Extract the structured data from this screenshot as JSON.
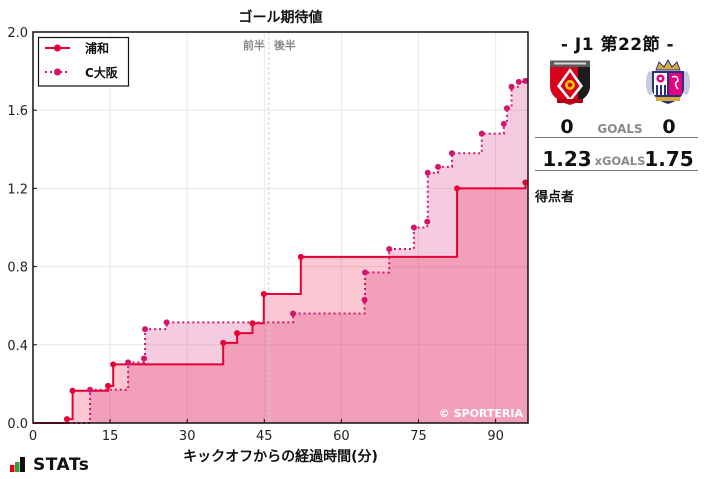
{
  "chart": {
    "title": "ゴール期待値",
    "xlabel": "キックオフからの経過時間(分)",
    "first_half_label": "前半",
    "second_half_label": "後半",
    "copyright": "© SPORTERIA",
    "legend": [
      {
        "label": "浦和",
        "color": "#e60033",
        "style": "solid"
      },
      {
        "label": "C大阪",
        "color": "#d3156e",
        "style": "dotted"
      }
    ]
  },
  "match": {
    "round": "- J1 第22節 -",
    "home": {
      "name": "浦和",
      "goals": "0",
      "xg": "1.23",
      "crest_icon": "urawa-reds-crest"
    },
    "away": {
      "name": "C大阪",
      "goals": "0",
      "xg": "1.75",
      "crest_icon": "cerezo-osaka-crest"
    },
    "goals_label": "GOALS",
    "xgoals_label": "xGOALS",
    "scorers_label": "得点者"
  },
  "footer": {
    "brand": "STATs",
    "brand_icon": "bar-chart-icon"
  },
  "chart_data": {
    "type": "line",
    "step": "post",
    "title": "ゴール期待値",
    "xlabel": "キックオフからの経過時間(分)",
    "ylabel": "",
    "xlim": [
      0,
      96.3
    ],
    "ylim": [
      0,
      2.0
    ],
    "xticks": [
      0,
      15,
      30,
      45,
      60,
      75,
      90
    ],
    "xtick_labels": [
      "0",
      "15",
      "30",
      "45",
      "60",
      "75",
      "90"
    ],
    "yticks": [
      0.0,
      0.4,
      0.8,
      1.2,
      1.6,
      2.0
    ],
    "ytick_labels": [
      "0.0",
      "0.4",
      "0.8",
      "1.2",
      "1.6",
      "2.0"
    ],
    "grid": true,
    "legend_position": "upper left",
    "halftime_minute": 45.9,
    "annotations": [
      "前半",
      "後半",
      "© SPORTERIA"
    ],
    "series": [
      {
        "name": "浦和",
        "color": "#e60033",
        "fill": "rgba(230,0,51,0.22)",
        "linestyle": "solid",
        "x": [
          0,
          6.6,
          7.7,
          14.6,
          15.6,
          37.0,
          39.7,
          42.7,
          44.9,
          52.1,
          82.5,
          95.8
        ],
        "y": [
          0,
          0.02,
          0.165,
          0.19,
          0.3,
          0.41,
          0.46,
          0.51,
          0.66,
          0.85,
          1.2,
          1.23
        ]
      },
      {
        "name": "C大阪",
        "color": "#d3156e",
        "fill": "rgba(211,21,110,0.22)",
        "linestyle": "dotted",
        "x": [
          0,
          11.1,
          18.5,
          21.6,
          21.8,
          26.0,
          50.6,
          64.5,
          64.6,
          69.3,
          74.1,
          76.7,
          76.8,
          78.8,
          81.5,
          87.3,
          91.6,
          92.2,
          93.1,
          94.5,
          95.8
        ],
        "y": [
          0,
          0.17,
          0.31,
          0.33,
          0.48,
          0.515,
          0.56,
          0.63,
          0.77,
          0.89,
          1.0,
          1.03,
          1.28,
          1.31,
          1.38,
          1.48,
          1.53,
          1.61,
          1.72,
          1.745,
          1.75
        ]
      }
    ]
  }
}
